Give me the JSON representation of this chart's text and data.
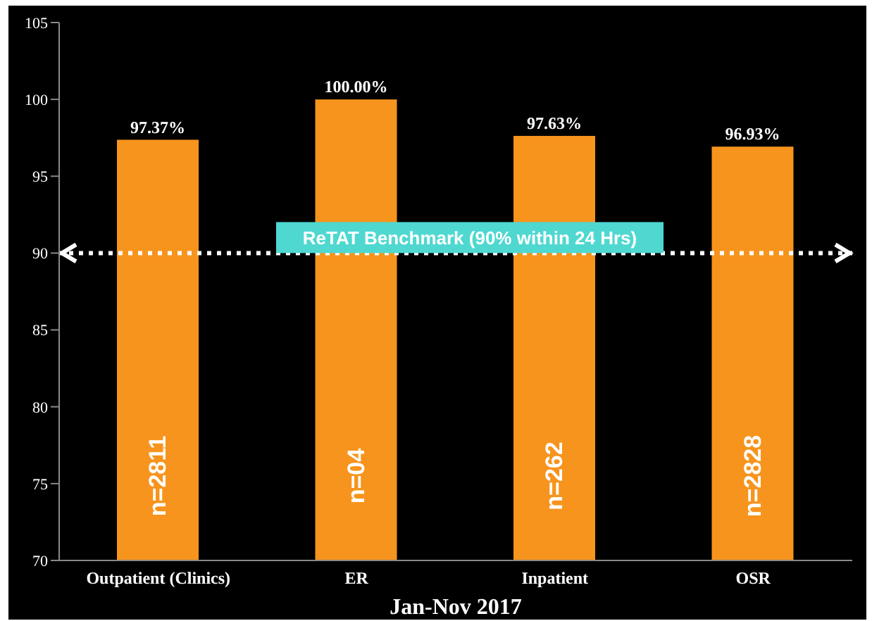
{
  "chart_data": {
    "type": "bar",
    "xlabel": "Jan-Nov 2017",
    "categories": [
      "Outpatient (Clinics)",
      "ER",
      "Inpatient",
      "OSR"
    ],
    "values": [
      97.37,
      100,
      97.63,
      96.93
    ],
    "value_labels": [
      "97.37%",
      "100.00%",
      "97.63%",
      "96.93%"
    ],
    "color": "#f7941d",
    "ylim": [
      70,
      105
    ],
    "yticks": [
      70,
      75,
      80,
      85,
      90,
      95,
      100,
      105
    ],
    "grid": false,
    "ref_lines": [
      {
        "axis": "y",
        "value": 90,
        "label": "ReTAT Benchmark (90% within 24 Hrs)",
        "color": "#ffffff",
        "line_style": "dotted"
      }
    ],
    "annotations": [
      "n=2811",
      "n=04",
      "n=262",
      "n=2828"
    ]
  }
}
